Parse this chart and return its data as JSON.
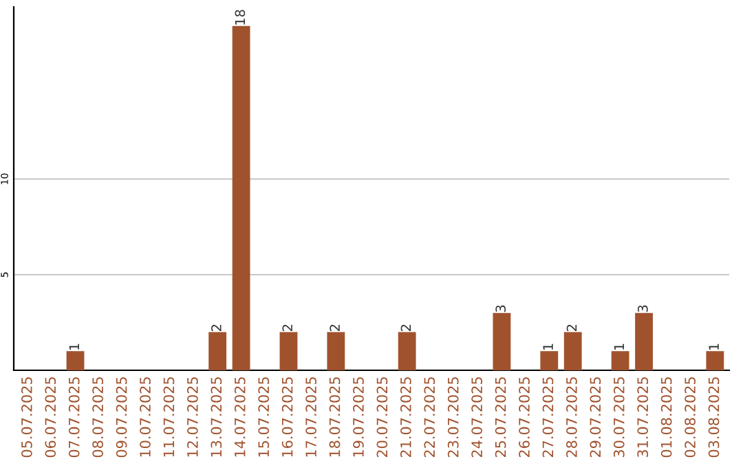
{
  "chart_data": {
    "type": "bar",
    "categories": [
      "05.07.2025",
      "06.07.2025",
      "07.07.2025",
      "08.07.2025",
      "09.07.2025",
      "10.07.2025",
      "11.07.2025",
      "12.07.2025",
      "13.07.2025",
      "14.07.2025",
      "15.07.2025",
      "16.07.2025",
      "17.07.2025",
      "18.07.2025",
      "19.07.2025",
      "20.07.2025",
      "21.07.2025",
      "22.07.2025",
      "23.07.2025",
      "24.07.2025",
      "25.07.2025",
      "26.07.2025",
      "27.07.2025",
      "28.07.2025",
      "29.07.2025",
      "30.07.2025",
      "31.07.2025",
      "01.08.2025",
      "02.08.2025",
      "03.08.2025"
    ],
    "values": [
      0,
      0,
      1,
      0,
      0,
      0,
      0,
      0,
      2,
      18,
      0,
      2,
      0,
      2,
      0,
      0,
      2,
      0,
      0,
      0,
      3,
      0,
      1,
      2,
      0,
      1,
      3,
      0,
      0,
      1
    ],
    "value_labels": [
      null,
      null,
      "1",
      null,
      null,
      null,
      null,
      null,
      "2",
      "18",
      null,
      "2",
      null,
      "2",
      null,
      null,
      "2",
      null,
      null,
      null,
      "3",
      null,
      "1",
      "2",
      null,
      "1",
      "3",
      null,
      null,
      "1"
    ],
    "color": "#a0522d",
    "ylim": [
      0,
      19
    ],
    "yticks": [
      5,
      10
    ],
    "grid": "y"
  }
}
